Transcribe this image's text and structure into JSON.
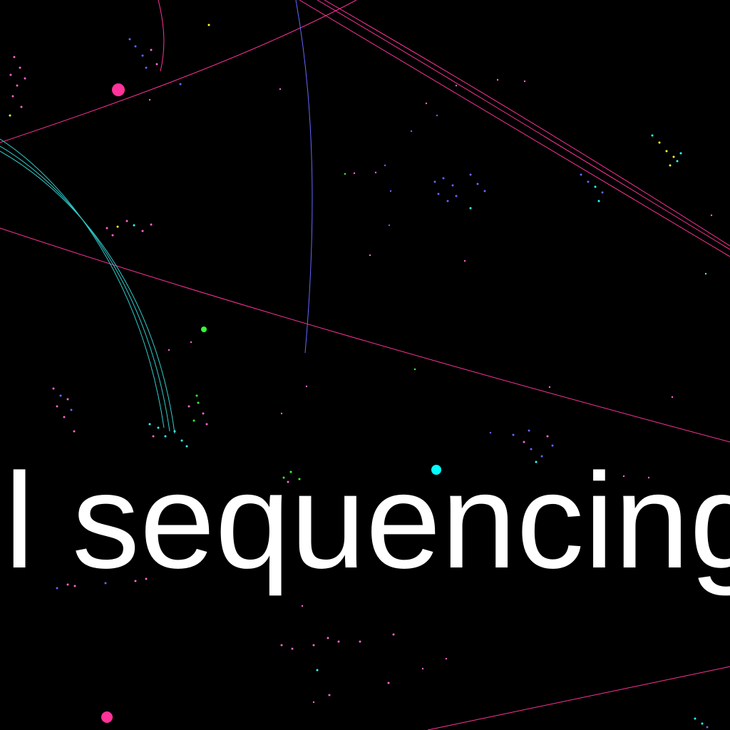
{
  "caption": {
    "text": "l sequencing"
  },
  "palette": {
    "background": "#000000",
    "caption": "#ffffff",
    "magenta": "#ff3399",
    "pink": "#ff66cc",
    "cyan": "#33ffff",
    "blue": "#6666ff",
    "yellow": "#ffff33",
    "green": "#33ff33"
  }
}
